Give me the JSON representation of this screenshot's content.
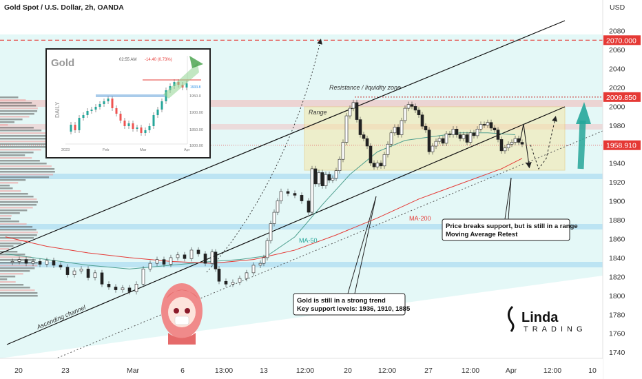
{
  "header": {
    "title": "Gold Spot / U.S. Dollar, 2h, OANDA",
    "currency": "USD"
  },
  "chart_data": {
    "type": "line",
    "title": "Gold Spot / U.S. Dollar, 2h, OANDA",
    "ylim": [
      1735,
      2095
    ],
    "y_ticks": [
      2080,
      2060,
      2040,
      2020,
      2000,
      1980,
      1960,
      1940,
      1920,
      1900,
      1880,
      1860,
      1840,
      1820,
      1800,
      1780,
      1760,
      1740
    ],
    "x_tick_labels": [
      "20",
      "23",
      "Mar",
      "6",
      "13:00",
      "13",
      "12:00",
      "20",
      "12:00",
      "27",
      "12:00",
      "Apr",
      "12:00",
      "10"
    ],
    "price_tags": [
      {
        "label": "2070.000",
        "value": 2070,
        "color": "#e53935"
      },
      {
        "label": "2009.850",
        "value": 2009.85,
        "color": "#e53935"
      },
      {
        "label": "1958.910",
        "value": 1958.91,
        "color": "#e53935"
      }
    ],
    "series": [
      {
        "name": "Price",
        "x": [
          0,
          10,
          20,
          30,
          40,
          50,
          60,
          70,
          80,
          90,
          100,
          110,
          120,
          130,
          140,
          150,
          160,
          170,
          180,
          190,
          200,
          210,
          220,
          230,
          240,
          250,
          260,
          270,
          280,
          290,
          300,
          305,
          310,
          320,
          330,
          340,
          350,
          360,
          370,
          375,
          380,
          385,
          390,
          395,
          400,
          410,
          420,
          430,
          440,
          445,
          450,
          455,
          460,
          465,
          470,
          475,
          480,
          485,
          490,
          495,
          500,
          505,
          510,
          515,
          520,
          525,
          530,
          535,
          540,
          545,
          550,
          555,
          560,
          565,
          570,
          575,
          580,
          585,
          590,
          595,
          600,
          605,
          610,
          615,
          620,
          625,
          630,
          635,
          640,
          645,
          650,
          655,
          660,
          665,
          670,
          675,
          680,
          685,
          690,
          695,
          700,
          705,
          710,
          715,
          720,
          725,
          730,
          735,
          740,
          745,
          750
        ],
        "y": [
          1835,
          1836,
          1838,
          1834,
          1836,
          1833,
          1837,
          1832,
          1830,
          1822,
          1826,
          1828,
          1819,
          1824,
          1812,
          1809,
          1806,
          1808,
          1804,
          1812,
          1828,
          1834,
          1838,
          1833,
          1840,
          1843,
          1839,
          1848,
          1844,
          1834,
          1846,
          1828,
          1815,
          1812,
          1814,
          1818,
          1824,
          1832,
          1834,
          1840,
          1858,
          1876,
          1888,
          1900,
          1910,
          1908,
          1906,
          1900,
          1888,
          1934,
          1918,
          1930,
          1916,
          1928,
          1922,
          1924,
          1932,
          1944,
          1962,
          1990,
          1998,
          2004,
          1986,
          1970,
          1966,
          1958,
          1940,
          1936,
          1940,
          1937,
          1949,
          1960,
          1972,
          1978,
          1970,
          1985,
          1998,
          2002,
          2000,
          1996,
          1991,
          1979,
          1975,
          1952,
          1958,
          1963,
          1966,
          1961,
          1971,
          1970,
          1976,
          1970,
          1966,
          1970,
          1962,
          1972,
          1969,
          1976,
          1981,
          1980,
          1983,
          1977,
          1975,
          1965,
          1953,
          1956,
          1960,
          1962,
          1966,
          1962,
          1960
        ]
      },
      {
        "name": "MA-50",
        "x": [
          0,
          60,
          120,
          180,
          240,
          300,
          340,
          380,
          420,
          460,
          500,
          540,
          580,
          620,
          660,
          700,
          740
        ],
        "y": [
          1844,
          1838,
          1832,
          1828,
          1832,
          1836,
          1838,
          1842,
          1862,
          1896,
          1928,
          1952,
          1964,
          1968,
          1972,
          1972,
          1970
        ]
      },
      {
        "name": "MA-200",
        "x": [
          0,
          60,
          120,
          180,
          240,
          300,
          360,
          420,
          480,
          540,
          600,
          660,
          720,
          750
        ],
        "y": [
          1862,
          1852,
          1845,
          1840,
          1836,
          1834,
          1838,
          1848,
          1864,
          1882,
          1902,
          1918,
          1934,
          1945
        ]
      }
    ],
    "annotations": {
      "range_label": "Range",
      "resistance_label": "Resistance / liquidity zone",
      "channel_label": "Ascending channel",
      "ma50_label": "MA-50",
      "ma200_label": "MA-200",
      "callout_left_line1": "Gold is still in a strong trend",
      "callout_left_line2": "Key support levels: 1936, 1910, 1885",
      "callout_right_line1": "Price breaks support, but is still in a range",
      "callout_right_line2": "Moving Average Retest"
    }
  },
  "inset": {
    "title": "Gold",
    "daily_label": "DAILY",
    "time": "02:55 AM",
    "change": "-14.40 (0.73%)",
    "y_labels": [
      "1950.0",
      "1900.00",
      "1850.00",
      "1800.00"
    ],
    "x_labels": [
      "2023",
      "Feb",
      "Mar",
      "Apr"
    ],
    "price": "1933.8"
  },
  "logo": {
    "word1": "Linda",
    "word2": "TRADING"
  }
}
